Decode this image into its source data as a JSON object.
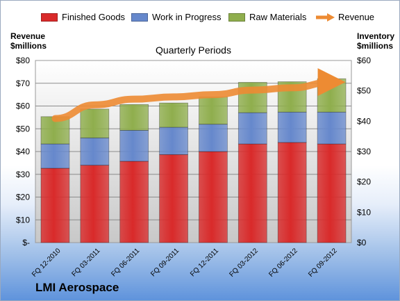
{
  "brand": "LMI Aerospace",
  "chart_data": {
    "type": "bar",
    "subtype": "stacked-bar-with-line",
    "title": "Quarterly Periods",
    "categories": [
      "FQ 12-2010",
      "FQ 03-2011",
      "FQ 06-2011",
      "FQ 09-2011",
      "FQ 12-2011",
      "FQ 03-2012",
      "FQ 06-2012",
      "FQ 09-2012"
    ],
    "series": [
      {
        "name": "Finished Goods",
        "axis": "right",
        "color": "#d92a2a",
        "values": [
          24.5,
          25.5,
          26.8,
          29.0,
          30.0,
          32.5,
          33.0,
          32.5
        ]
      },
      {
        "name": "Work in Progress",
        "axis": "right",
        "color": "#6688cc",
        "values": [
          8.0,
          9.0,
          10.2,
          9.0,
          9.0,
          10.3,
          10.0,
          10.5
        ]
      },
      {
        "name": "Raw Materials",
        "axis": "right",
        "color": "#8fae4d",
        "values": [
          9.0,
          9.5,
          8.5,
          8.0,
          9.0,
          10.0,
          10.0,
          11.0
        ]
      },
      {
        "name": "Revenue",
        "axis": "left",
        "type": "line",
        "color": "#ed8b33",
        "values": [
          54.5,
          60.5,
          63.0,
          64.0,
          65.0,
          67.0,
          68.0,
          70.5
        ]
      }
    ],
    "yaxis_left": {
      "label_line1": "Revenue",
      "label_line2": "$millions",
      "min": 0,
      "max": 80,
      "step": 10,
      "tick_labels": [
        "$-",
        "$10",
        "$20",
        "$30",
        "$40",
        "$50",
        "$60",
        "$70",
        "$80"
      ]
    },
    "yaxis_right": {
      "label_line1": "Inventory",
      "label_line2": "$millions",
      "min": 0,
      "max": 60,
      "step": 10,
      "tick_labels": [
        "$0",
        "$10",
        "$20",
        "$30",
        "$40",
        "$50",
        "$60"
      ]
    },
    "grid": true,
    "legend": "top"
  }
}
